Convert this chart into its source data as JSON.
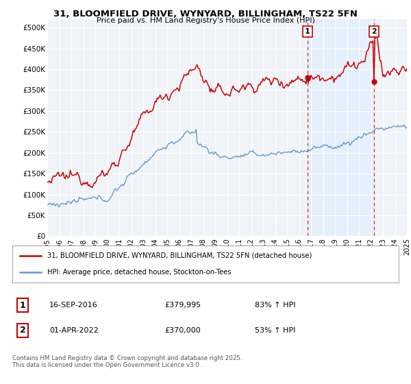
{
  "title_line1": "31, BLOOMFIELD DRIVE, WYNYARD, BILLINGHAM, TS22 5FN",
  "title_line2": "Price paid vs. HM Land Registry's House Price Index (HPI)",
  "ylim": [
    0,
    520000
  ],
  "yticks": [
    0,
    50000,
    100000,
    150000,
    200000,
    250000,
    300000,
    350000,
    400000,
    450000,
    500000
  ],
  "ytick_labels": [
    "£0",
    "£50K",
    "£100K",
    "£150K",
    "£200K",
    "£250K",
    "£300K",
    "£350K",
    "£400K",
    "£450K",
    "£500K"
  ],
  "bg_color": "#ffffff",
  "plot_bg_color": "#f8f8f8",
  "shade_color": "#ddeeff",
  "red_color": "#cc0000",
  "blue_color": "#6699cc",
  "marker1_year": 2016.708,
  "marker2_year": 2022.25,
  "marker1_value": 379995,
  "marker2_value": 370000,
  "legend_line1": "31, BLOOMFIELD DRIVE, WYNYARD, BILLINGHAM, TS22 5FN (detached house)",
  "legend_line2": "HPI: Average price, detached house, Stockton-on-Tees",
  "sale1_date": "16-SEP-2016",
  "sale1_price": "£379,995",
  "sale1_hpi": "83% ↑ HPI",
  "sale2_date": "01-APR-2022",
  "sale2_price": "£370,000",
  "sale2_hpi": "53% ↑ HPI",
  "footer": "Contains HM Land Registry data © Crown copyright and database right 2025.\nThis data is licensed under the Open Government Licence v3.0.",
  "x_start_year": 1995,
  "x_end_year": 2025
}
